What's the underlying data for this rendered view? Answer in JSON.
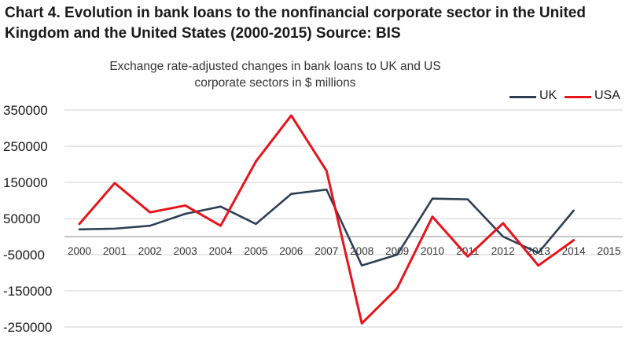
{
  "heading": "Chart 4. Evolution in bank loans to the nonfinancial corporate sector in the United Kingdom and the United States (2000-2015) Source: BIS",
  "chart_data": {
    "type": "line",
    "subtitle_line1": "Exchange rate-adjusted changes in bank loans to UK and US",
    "subtitle_line2": "corporate sectors in $ millions",
    "categories": [
      "2000",
      "2001",
      "2002",
      "2003",
      "2004",
      "2005",
      "2006",
      "2007",
      "2008",
      "2009",
      "2010",
      "2011",
      "2012",
      "2013",
      "2014",
      "2015"
    ],
    "yticks": [
      350000,
      250000,
      150000,
      50000,
      -50000,
      -150000,
      -250000
    ],
    "ylim": [
      -250000,
      350000
    ],
    "grid": true,
    "legend_position": "top-right",
    "series": [
      {
        "name": "UK",
        "color": "#2e3f55",
        "values": [
          20000,
          22000,
          30000,
          63000,
          83000,
          35000,
          118000,
          130000,
          -80000,
          -50000,
          105000,
          103000,
          0,
          -45000,
          72000,
          null
        ]
      },
      {
        "name": "USA",
        "color": "#e8141c",
        "values": [
          35000,
          148000,
          67000,
          86000,
          30000,
          208000,
          335000,
          182000,
          -240000,
          -143000,
          55000,
          -55000,
          37000,
          -80000,
          -10000,
          null
        ]
      }
    ],
    "category_label_colors": {
      "last": "#2b4a6f",
      "default": "#333333"
    }
  }
}
